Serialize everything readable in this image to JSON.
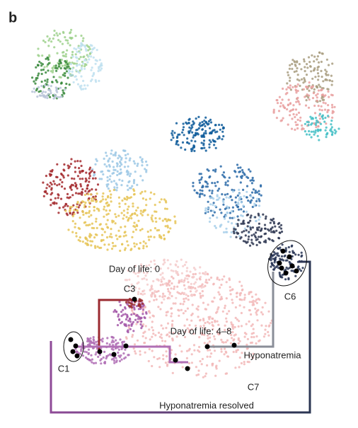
{
  "panel_label": "b",
  "labels": {
    "day0": "Day of life: 0",
    "day48": "Day of life: 4–8",
    "c1": "C1",
    "c3": "C3",
    "c6": "C6",
    "c7": "C7",
    "hyponatremia": "Hyponatremia",
    "resolved": "Hyponatremia resolved"
  }
}
